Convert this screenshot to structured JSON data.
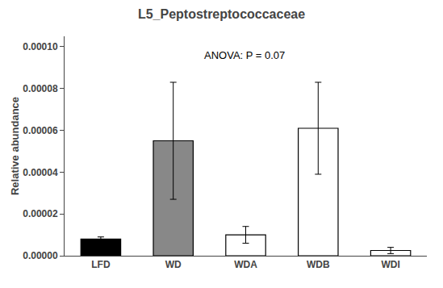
{
  "chart_data": {
    "type": "bar",
    "title": "L5_Peptostreptococcaceae",
    "ylabel": "Relative abundance",
    "categories": [
      "LFD",
      "WD",
      "WDA",
      "WDB",
      "WDI"
    ],
    "values": [
      8e-06,
      5.5e-05,
      1e-05,
      6.1e-05,
      2.5e-06
    ],
    "errors": [
      1e-06,
      2.8e-05,
      4e-06,
      2.2e-05,
      1.5e-06
    ],
    "colors": [
      "black",
      "#888888",
      "white",
      "white",
      "white"
    ],
    "ylim": [
      0,
      0.000105
    ],
    "yticks": [
      {
        "value": 0,
        "label": "0.00000"
      },
      {
        "value": 2e-05,
        "label": "0.00002"
      },
      {
        "value": 4e-05,
        "label": "0.00004"
      },
      {
        "value": 6e-05,
        "label": "0.00006"
      },
      {
        "value": 8e-05,
        "label": "0.00008"
      },
      {
        "value": 0.0001,
        "label": "0.00010"
      }
    ],
    "annotations": [
      "ANOVA: P = 0.07"
    ],
    "grid": false
  }
}
